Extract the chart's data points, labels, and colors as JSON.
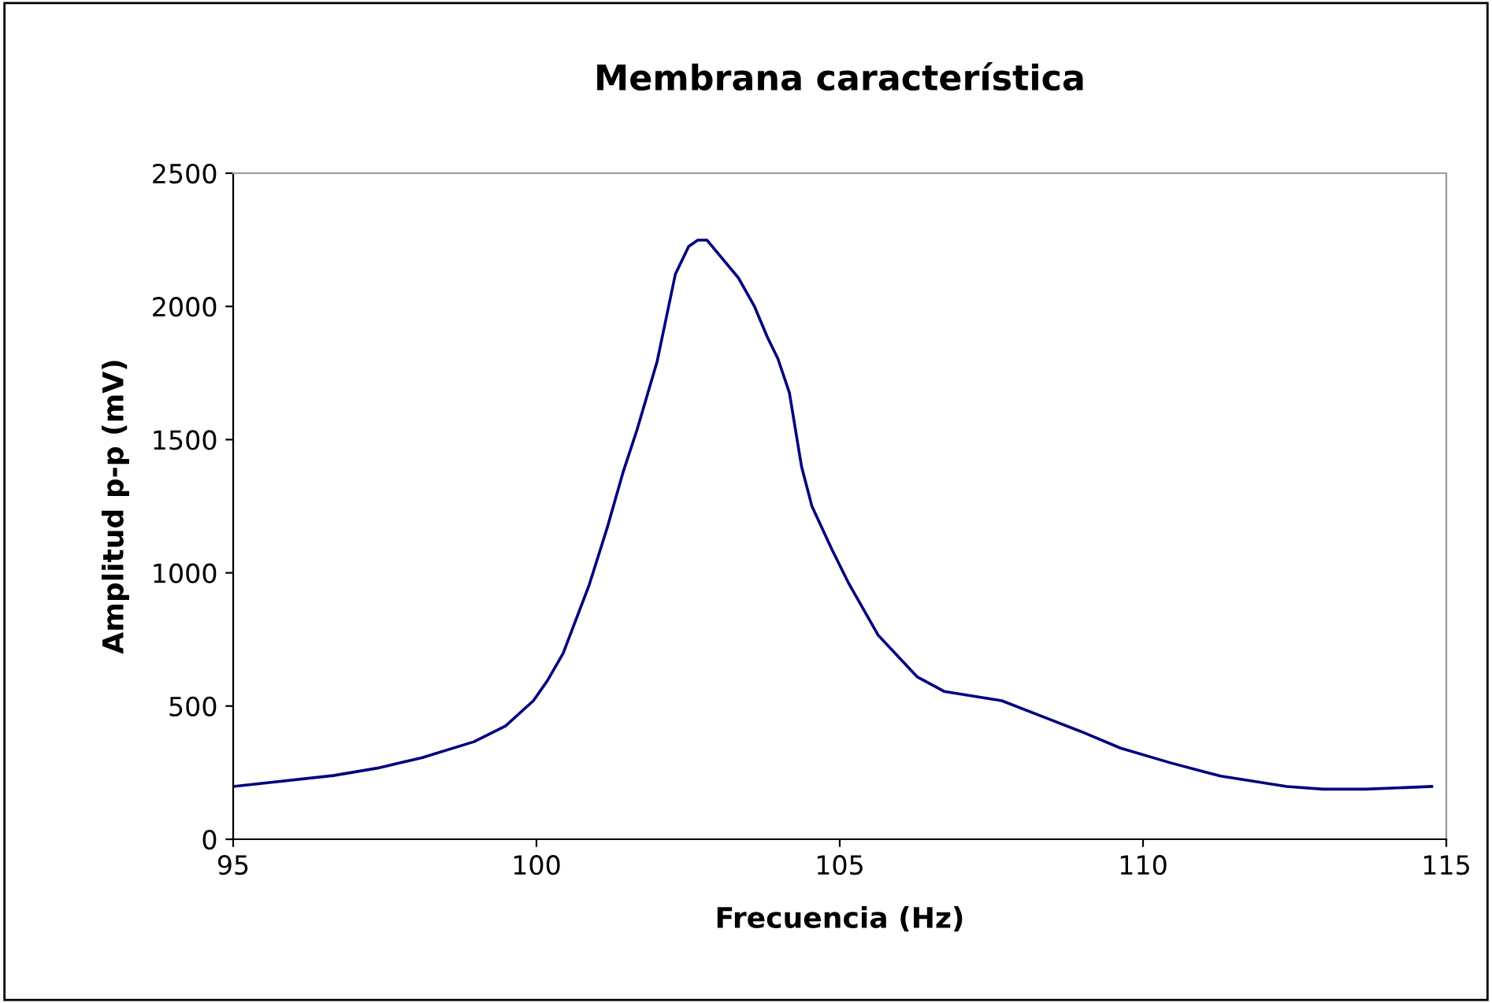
{
  "chart_data": {
    "type": "line",
    "title": "Membrana característica",
    "xlabel": "Frecuencia (Hz)",
    "ylabel": "Amplitud p-p (mV)",
    "x": [
      95,
      96.65,
      97.38,
      98.11,
      98.97,
      99.49,
      99.95,
      100.18,
      100.44,
      100.87,
      101.17,
      101.43,
      101.66,
      101.99,
      102.29,
      102.51,
      102.66,
      102.81,
      103.33,
      103.59,
      103.81,
      103.98,
      104.17,
      104.37,
      104.54,
      104.87,
      105.14,
      105.63,
      106.28,
      106.72,
      107.67,
      108.45,
      108.97,
      109.63,
      110.45,
      111.28,
      112.37,
      112.97,
      113.67,
      114.76
    ],
    "series": [
      {
        "color": "#000080",
        "values": [
          198,
          239,
          267,
          306,
          366,
          425,
          520,
          595,
          698,
          955,
          1172,
          1379,
          1538,
          1794,
          2121,
          2225,
          2249,
          2249,
          2107,
          2002,
          1883,
          1804,
          1676,
          1399,
          1251,
          1088,
          964,
          767,
          609,
          555,
          520,
          451,
          405,
          342,
          287,
          237,
          198,
          188,
          188,
          198
        ]
      }
    ],
    "xlim": [
      95,
      115
    ],
    "xticks": [
      95,
      100,
      105,
      110,
      115
    ],
    "ylim": [
      0,
      2500
    ],
    "yticks": [
      0,
      500,
      1000,
      1500,
      2000,
      2500
    ],
    "grid": false,
    "legend": false,
    "marker": "none",
    "line_style": "solid"
  }
}
